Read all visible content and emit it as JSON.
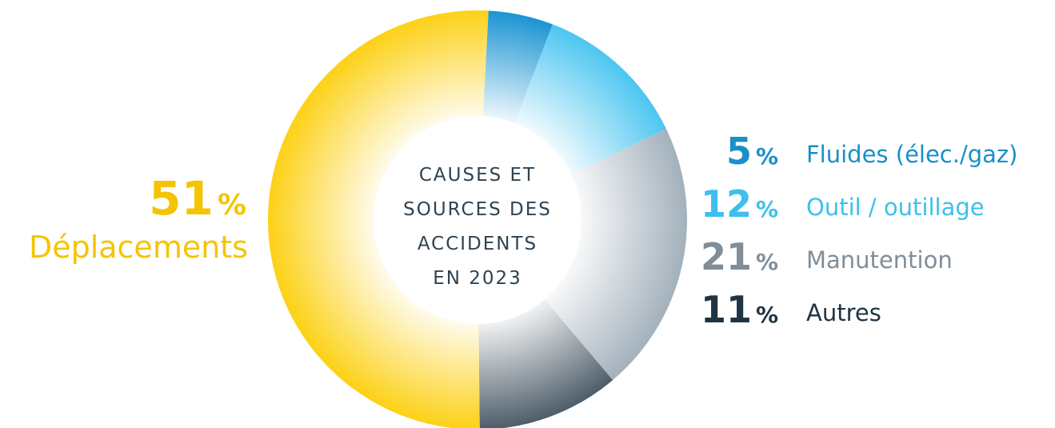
{
  "chart_data": {
    "type": "pie",
    "donut": true,
    "title": [
      "CAUSES ET",
      "SOURCES DES",
      "ACCIDENTS",
      "EN 2023"
    ],
    "unit": "%",
    "categories": [
      "Fluides (élec./gaz)",
      "Outil / outillage",
      "Manutention",
      "Autres",
      "Déplacements"
    ],
    "values": [
      5,
      12,
      21,
      11,
      51
    ],
    "colors": [
      "#1a94d2",
      "#4cc6f0",
      "#a3b1bc",
      "#4d5d69",
      "#fcd116"
    ],
    "label_colors": [
      "#1a8fc8",
      "#3fbfed",
      "#7f8e99",
      "#1f3442",
      "#f5c400"
    ]
  }
}
